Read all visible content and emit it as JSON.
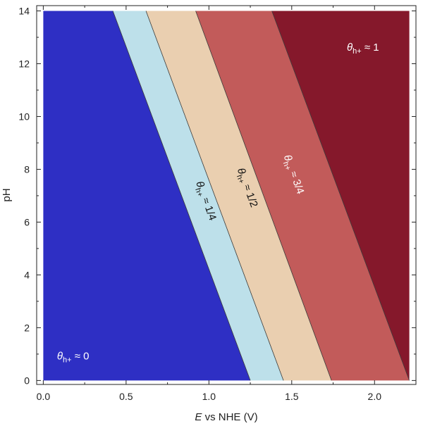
{
  "chart_data": {
    "type": "area",
    "xlabel_italic": "E",
    "xlabel_rest": " vs NHE (V)",
    "ylabel": "pH",
    "xlim": [
      -0.04,
      2.25
    ],
    "ylim": [
      -0.15,
      14.2
    ],
    "xticks": [
      0.0,
      0.5,
      1.0,
      1.5,
      2.0
    ],
    "xtick_labels": [
      "0.0",
      "0.5",
      "1.0",
      "1.5",
      "2.0"
    ],
    "yticks": [
      0,
      2,
      4,
      6,
      8,
      10,
      12,
      14
    ],
    "ytick_labels": [
      "0",
      "2",
      "4",
      "6",
      "8",
      "10",
      "12",
      "14"
    ],
    "plot_extent": {
      "x": [
        0.0,
        2.21
      ],
      "y": [
        0,
        14
      ]
    },
    "boundaries": [
      {
        "E_at_pH0": 1.25,
        "E_at_pH14": 0.42
      },
      {
        "E_at_pH0": 1.45,
        "E_at_pH14": 0.62
      },
      {
        "E_at_pH0": 1.74,
        "E_at_pH14": 0.92
      },
      {
        "E_at_pH0": 2.21,
        "E_at_pH14": 1.38
      }
    ],
    "regions": [
      {
        "color": "#2e2fc4",
        "theta_symbol": "θ",
        "subscript": "h+",
        "coverage": "0",
        "label_color": "#ffffff",
        "label_E": 0.18,
        "label_pH": 0.9,
        "label_angle": 0
      },
      {
        "color": "#bde0ea",
        "theta_symbol": "θ",
        "subscript": "h+",
        "coverage": "1/4",
        "label_color": "#111111",
        "label_E": 0.98,
        "label_pH": 6.8,
        "label_angle": 70
      },
      {
        "color": "#eacfb0",
        "theta_symbol": "θ",
        "subscript": "h+",
        "coverage": "1/2",
        "label_color": "#111111",
        "label_E": 1.23,
        "label_pH": 7.3,
        "label_angle": 70
      },
      {
        "color": "#c25b5a",
        "theta_symbol": "θ",
        "subscript": "h+",
        "coverage": "3/4",
        "label_color": "#ffffff",
        "label_E": 1.51,
        "label_pH": 7.8,
        "label_angle": 70
      },
      {
        "color": "#85182b",
        "theta_symbol": "θ",
        "subscript": "h+",
        "coverage": "1",
        "label_color": "#ffffff",
        "label_E": 1.93,
        "label_pH": 12.6,
        "label_angle": 0
      }
    ]
  }
}
